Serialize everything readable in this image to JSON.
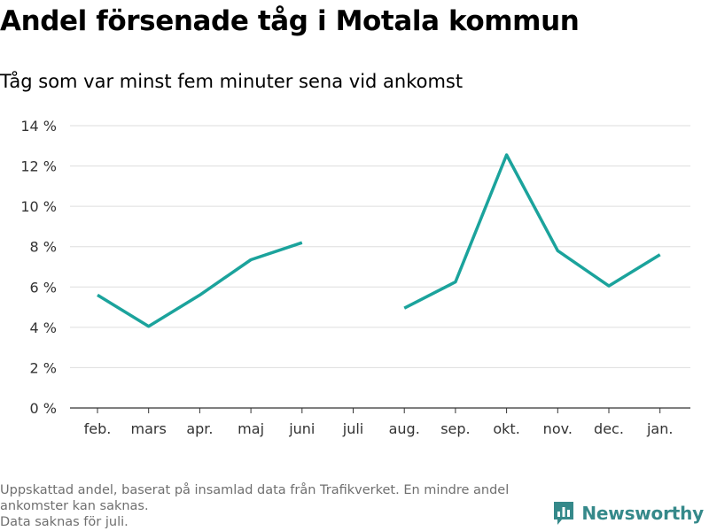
{
  "title": "Andel försenade tåg i Motala kommun",
  "subtitle": "Tåg som var minst fem minuter sena vid ankomst",
  "footnote": {
    "line1": "Uppskattad andel, baserat på insamlad data från Trafikverket. En mindre andel",
    "line2": "ankomster kan saknas.",
    "line3": "Data saknas för juli."
  },
  "brand": {
    "name": "Newsworthy",
    "icon": "newsworthy-logo-icon",
    "color": "#35898a"
  },
  "chart_data": {
    "type": "line",
    "categories": [
      "feb.",
      "mars",
      "apr.",
      "maj",
      "juni",
      "juli",
      "aug.",
      "sep.",
      "okt.",
      "nov.",
      "dec.",
      "jan."
    ],
    "series": [
      {
        "values": [
          5.6,
          4.05,
          5.6,
          7.35,
          8.2,
          null,
          4.95,
          6.25,
          12.55,
          7.8,
          6.05,
          7.6
        ]
      }
    ],
    "yticks": [
      0,
      2,
      4,
      6,
      8,
      10,
      12,
      14
    ],
    "ytick_suffix": " %",
    "ylim": [
      0,
      14
    ],
    "grid": true,
    "line_color": "#1ba39c"
  }
}
